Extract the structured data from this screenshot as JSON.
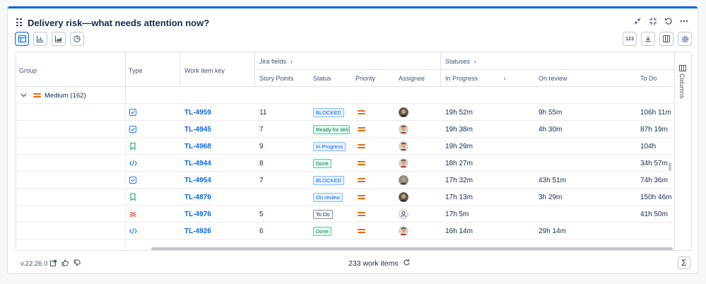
{
  "header": {
    "title": "Delivery risk—what needs attention now?"
  },
  "toolbar": {
    "count_label": "123"
  },
  "columns": {
    "group": "Group",
    "type": "Type",
    "work_item_key": "Work item key",
    "jira_fields": "Jira fields",
    "statuses": "Statuses",
    "story_points": "Story Points",
    "status": "Status",
    "priority": "Priority",
    "assignee": "Assignee",
    "in_progress": "In Progress",
    "on_review": "On review",
    "to_do": "To Do"
  },
  "group_row": {
    "label": "Medium (162)"
  },
  "rows": [
    {
      "type": "task",
      "key": "TL-4959",
      "points": "11",
      "status": "BLOCKED",
      "status_style": "blocked",
      "assignee": "avatar-dark",
      "in_progress": "19h 52m",
      "on_review": "9h 55m",
      "to_do": "106h 11m"
    },
    {
      "type": "task",
      "key": "TL-4945",
      "points": "7",
      "status": "Ready for deli",
      "status_style": "ready",
      "assignee": "avatar-light",
      "in_progress": "19h 38m",
      "on_review": "4h 30m",
      "to_do": "87h 19m"
    },
    {
      "type": "story",
      "key": "TL-4968",
      "points": "9",
      "status": "In Progress",
      "status_style": "progress",
      "assignee": "avatar-light",
      "in_progress": "19h 29m",
      "on_review": "",
      "to_do": "104h"
    },
    {
      "type": "code",
      "key": "TL-4944",
      "points": "8",
      "status": "Done",
      "status_style": "done",
      "assignee": "avatar-light",
      "in_progress": "18h 27m",
      "on_review": "",
      "to_do": "34h 57m"
    },
    {
      "type": "task",
      "key": "TL-4954",
      "points": "7",
      "status": "BLOCKED",
      "status_style": "blocked",
      "assignee": "avatar-mid",
      "in_progress": "17h 32m",
      "on_review": "43h 51m",
      "to_do": "74h 36m"
    },
    {
      "type": "story",
      "key": "TL-4876",
      "points": "",
      "status": "On review",
      "status_style": "review",
      "assignee": "avatar-dark",
      "in_progress": "17h 13m",
      "on_review": "3h 29m",
      "to_do": "150h 46m"
    },
    {
      "type": "bug",
      "key": "TL-4976",
      "points": "5",
      "status": "To Do",
      "status_style": "todo",
      "assignee": "avatar-empty",
      "in_progress": "17h 5m",
      "on_review": "",
      "to_do": "41h 50m"
    },
    {
      "type": "code",
      "key": "TL-4926",
      "points": "6",
      "status": "Done",
      "status_style": "done",
      "assignee": "avatar-light",
      "in_progress": "16h 14m",
      "on_review": "29h 14m",
      "to_do": ""
    }
  ],
  "side_panel": {
    "label": "Columns"
  },
  "footer": {
    "version": "v.22.26.0",
    "count": "233 work items"
  },
  "colors": {
    "accent": "#0c66e4",
    "priority": "#e56910"
  }
}
